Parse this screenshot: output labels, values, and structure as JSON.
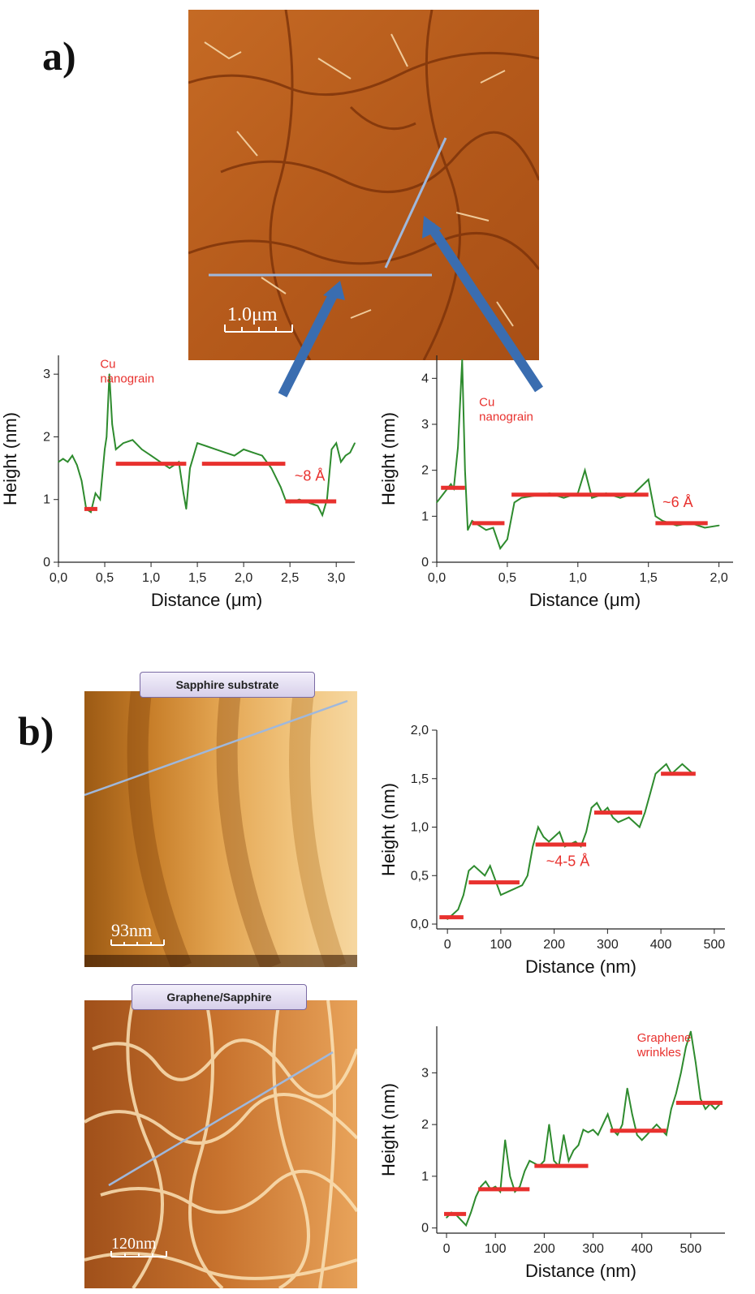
{
  "panels": {
    "a": {
      "label": "a)",
      "scale_bar": "1.0μm"
    },
    "b": {
      "label": "b)",
      "top_tag": "Sapphire substrate",
      "top_scale_bar": "93nm",
      "bottom_tag": "Graphene/Sapphire",
      "bottom_scale_bar": "120nm"
    }
  },
  "colors": {
    "profile": "#2e8b2e",
    "level": "#e8312e",
    "annotation": "#e8312e",
    "scan_line": "#9fb8dc",
    "arrow": "#3a6db0"
  },
  "chart_data": [
    {
      "type": "line",
      "xlabel": "Distance (μm)",
      "ylabel": "Height (nm)",
      "xlim": [
        0,
        3.2
      ],
      "ylim": [
        0,
        3.3
      ],
      "xticks": [
        "0,0",
        "0,5",
        "1,0",
        "1,5",
        "2,0",
        "2,5",
        "3,0"
      ],
      "yticks": [
        "0",
        "1",
        "2",
        "3"
      ],
      "x": [
        0,
        0.05,
        0.1,
        0.15,
        0.2,
        0.25,
        0.3,
        0.35,
        0.4,
        0.45,
        0.5,
        0.52,
        0.55,
        0.58,
        0.62,
        0.7,
        0.8,
        0.9,
        1.0,
        1.1,
        1.2,
        1.3,
        1.35,
        1.38,
        1.42,
        1.5,
        1.6,
        1.7,
        1.8,
        1.9,
        2.0,
        2.1,
        2.2,
        2.3,
        2.4,
        2.45,
        2.5,
        2.6,
        2.7,
        2.8,
        2.85,
        2.9,
        2.95,
        3.0,
        3.05,
        3.1,
        3.15,
        3.2
      ],
      "y": [
        1.6,
        1.65,
        1.6,
        1.7,
        1.55,
        1.3,
        0.85,
        0.8,
        1.1,
        1.0,
        1.8,
        2.0,
        3.0,
        2.2,
        1.8,
        1.9,
        1.95,
        1.8,
        1.7,
        1.6,
        1.5,
        1.6,
        1.1,
        0.85,
        1.5,
        1.9,
        1.85,
        1.8,
        1.75,
        1.7,
        1.8,
        1.75,
        1.7,
        1.5,
        1.2,
        1.0,
        0.95,
        1.0,
        0.95,
        0.9,
        0.75,
        1.0,
        1.8,
        1.9,
        1.6,
        1.7,
        1.75,
        1.9
      ],
      "levels": [
        {
          "x0": 0.28,
          "x1": 0.42,
          "y": 0.85
        },
        {
          "x0": 0.62,
          "x1": 1.38,
          "y": 1.57
        },
        {
          "x0": 1.55,
          "x1": 2.45,
          "y": 1.57
        },
        {
          "x0": 2.45,
          "x1": 3.0,
          "y": 0.97
        }
      ],
      "annotations": [
        {
          "text_lines": [
            "Cu",
            "nanograin"
          ],
          "x": 0.45,
          "y": 3.1
        },
        {
          "text": "~8 Å",
          "x": 2.55,
          "y": 1.3
        }
      ]
    },
    {
      "type": "line",
      "xlabel": "Distance (μm)",
      "ylabel": "Height (nm)",
      "xlim": [
        0,
        2.1
      ],
      "ylim": [
        0,
        4.5
      ],
      "xticks": [
        "0,0",
        "0,5",
        "1,0",
        "1,5",
        "2,0"
      ],
      "yticks": [
        "0",
        "1",
        "2",
        "3",
        "4"
      ],
      "x": [
        0,
        0.05,
        0.1,
        0.12,
        0.15,
        0.18,
        0.2,
        0.22,
        0.25,
        0.3,
        0.35,
        0.4,
        0.45,
        0.5,
        0.55,
        0.6,
        0.7,
        0.8,
        0.9,
        1.0,
        1.05,
        1.1,
        1.2,
        1.3,
        1.4,
        1.5,
        1.55,
        1.6,
        1.7,
        1.8,
        1.9,
        2.0
      ],
      "y": [
        1.3,
        1.5,
        1.7,
        1.6,
        2.5,
        4.4,
        2.0,
        0.7,
        0.9,
        0.8,
        0.7,
        0.75,
        0.3,
        0.5,
        1.3,
        1.4,
        1.45,
        1.5,
        1.4,
        1.5,
        2.0,
        1.4,
        1.5,
        1.4,
        1.5,
        1.8,
        1.0,
        0.9,
        0.8,
        0.85,
        0.75,
        0.8
      ],
      "levels": [
        {
          "x0": 0.03,
          "x1": 0.2,
          "y": 1.62
        },
        {
          "x0": 0.25,
          "x1": 0.48,
          "y": 0.85
        },
        {
          "x0": 0.53,
          "x1": 1.5,
          "y": 1.47
        },
        {
          "x0": 1.55,
          "x1": 1.92,
          "y": 0.85
        }
      ],
      "annotations": [
        {
          "text_lines": [
            "Cu",
            "nanograin"
          ],
          "x": 0.3,
          "y": 3.4
        },
        {
          "text": "~6 Å",
          "x": 1.6,
          "y": 1.2
        }
      ]
    },
    {
      "type": "line",
      "xlabel": "Distance (nm)",
      "ylabel": "Height (nm)",
      "xlim": [
        -20,
        520
      ],
      "ylim": [
        -0.05,
        2.0
      ],
      "xticks": [
        "0",
        "100",
        "200",
        "300",
        "400",
        "500"
      ],
      "yticks": [
        "0,0",
        "0,5",
        "1,0",
        "1,5",
        "2,0"
      ],
      "x": [
        0,
        10,
        20,
        30,
        40,
        50,
        60,
        70,
        80,
        100,
        120,
        140,
        150,
        160,
        170,
        180,
        190,
        200,
        210,
        220,
        240,
        250,
        260,
        270,
        280,
        290,
        300,
        310,
        320,
        340,
        360,
        370,
        380,
        390,
        400,
        410,
        420,
        430,
        440,
        450,
        460
      ],
      "y": [
        0.05,
        0.1,
        0.15,
        0.3,
        0.55,
        0.6,
        0.55,
        0.5,
        0.6,
        0.3,
        0.35,
        0.4,
        0.5,
        0.8,
        1.0,
        0.9,
        0.85,
        0.9,
        0.95,
        0.8,
        0.85,
        0.8,
        0.95,
        1.2,
        1.25,
        1.15,
        1.2,
        1.1,
        1.05,
        1.1,
        1.0,
        1.15,
        1.35,
        1.55,
        1.6,
        1.65,
        1.55,
        1.6,
        1.65,
        1.6,
        1.55
      ],
      "levels": [
        {
          "x0": -15,
          "x1": 30,
          "y": 0.07
        },
        {
          "x0": 40,
          "x1": 135,
          "y": 0.43
        },
        {
          "x0": 165,
          "x1": 260,
          "y": 0.82
        },
        {
          "x0": 275,
          "x1": 365,
          "y": 1.15
        },
        {
          "x0": 400,
          "x1": 465,
          "y": 1.55
        }
      ],
      "annotations": [
        {
          "text": "~4-5 Å",
          "x": 185,
          "y": 0.6
        }
      ]
    },
    {
      "type": "line",
      "xlabel": "Distance (nm)",
      "ylabel": "Height (nm)",
      "xlim": [
        -20,
        570
      ],
      "ylim": [
        -0.1,
        3.9
      ],
      "xticks": [
        "0",
        "100",
        "200",
        "300",
        "400",
        "500"
      ],
      "yticks": [
        "0",
        "1",
        "2",
        "3"
      ],
      "x": [
        0,
        10,
        20,
        30,
        40,
        50,
        60,
        70,
        80,
        90,
        100,
        110,
        120,
        130,
        140,
        150,
        160,
        170,
        180,
        190,
        200,
        210,
        220,
        230,
        240,
        250,
        260,
        270,
        280,
        290,
        300,
        310,
        320,
        330,
        340,
        350,
        360,
        370,
        380,
        390,
        400,
        410,
        420,
        430,
        440,
        450,
        460,
        470,
        480,
        490,
        500,
        510,
        520,
        530,
        540,
        550,
        560
      ],
      "y": [
        0.2,
        0.3,
        0.25,
        0.15,
        0.05,
        0.3,
        0.6,
        0.8,
        0.9,
        0.75,
        0.8,
        0.7,
        1.7,
        1.0,
        0.7,
        0.8,
        1.1,
        1.3,
        1.25,
        1.2,
        1.3,
        2.0,
        1.3,
        1.2,
        1.8,
        1.3,
        1.5,
        1.6,
        1.9,
        1.85,
        1.9,
        1.8,
        2.0,
        2.2,
        1.9,
        1.8,
        2.0,
        2.7,
        2.2,
        1.8,
        1.7,
        1.8,
        1.9,
        2.0,
        1.9,
        1.8,
        2.3,
        2.6,
        3.0,
        3.5,
        3.8,
        3.2,
        2.5,
        2.3,
        2.4,
        2.3,
        2.4
      ],
      "levels": [
        {
          "x0": -5,
          "x1": 40,
          "y": 0.27
        },
        {
          "x0": 65,
          "x1": 170,
          "y": 0.75
        },
        {
          "x0": 180,
          "x1": 290,
          "y": 1.2
        },
        {
          "x0": 335,
          "x1": 450,
          "y": 1.88
        },
        {
          "x0": 470,
          "x1": 565,
          "y": 2.42
        }
      ],
      "annotations": [
        {
          "text_lines": [
            "Graphene",
            "wrinkles"
          ],
          "x": 390,
          "y": 3.6
        }
      ]
    }
  ]
}
